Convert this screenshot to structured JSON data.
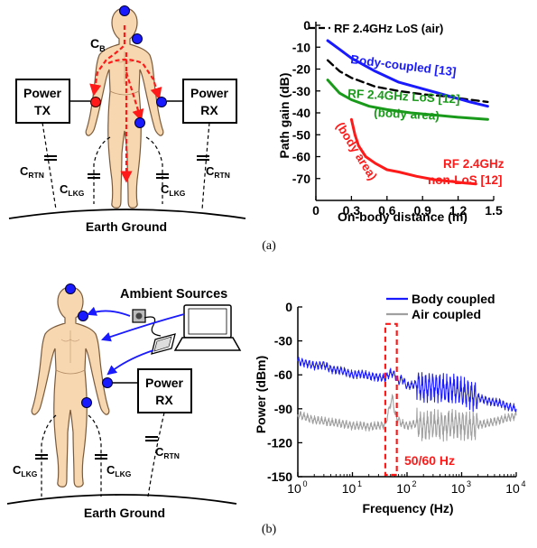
{
  "figure_a": {
    "caption": "(a)",
    "diagram": {
      "body_capacitance_label": "C",
      "body_capacitance_sub": "B",
      "power_tx_line1": "Power",
      "power_tx_line2": "TX",
      "power_rx_line1": "Power",
      "power_rx_line2": "RX",
      "c_rtn_left": "C",
      "c_rtn_left_sub": "RTN",
      "c_lkg_left": "C",
      "c_lkg_left_sub": "LKG",
      "c_lkg_right": "C",
      "c_lkg_right_sub": "LKG",
      "c_rtn_right": "C",
      "c_rtn_right_sub": "RTN",
      "ground_label": "Earth Ground"
    },
    "chart_data": {
      "type": "line",
      "xlabel": "On-body distance (m)",
      "ylabel": "Path gain (dB)",
      "xlim": [
        0,
        1.5
      ],
      "ylim": [
        -80,
        0
      ],
      "x_ticks": [
        "0",
        "0.3",
        "0.6",
        "0.9",
        "1.2",
        "1.5"
      ],
      "y_ticks": [
        "0",
        "-10",
        "-20",
        "-30",
        "-40",
        "-50",
        "-60",
        "-70"
      ],
      "legend": "RF 2.4GHz LoS (air)",
      "annotations": {
        "body_coupled": "Body-coupled [13]",
        "rf_los_body_1": "RF 2.4GHz LoS [12]",
        "rf_los_body_2": "(body area)",
        "rf_nlos_body": "(body area)",
        "rf_nlos_1": "RF 2.4GHz",
        "rf_nlos_2": "non-LoS [12]"
      },
      "series": [
        {
          "name": "RF 2.4GHz LoS (air)",
          "color": "#000000",
          "dash": true,
          "x": [
            0.1,
            0.2,
            0.3,
            0.5,
            0.7,
            0.9,
            1.1,
            1.3,
            1.45
          ],
          "y": [
            -16,
            -21,
            -24,
            -28,
            -30,
            -31.5,
            -32.5,
            -34,
            -35
          ]
        },
        {
          "name": "Body-coupled [13]",
          "color": "#1a1aff",
          "dash": false,
          "x": [
            0.1,
            0.2,
            0.3,
            0.5,
            0.7,
            0.9,
            1.1,
            1.3,
            1.45
          ],
          "y": [
            -7,
            -11,
            -15,
            -21,
            -26,
            -29,
            -32,
            -35,
            -37
          ]
        },
        {
          "name": "RF 2.4GHz LoS [12] (body area)",
          "color": "#1a9a1a",
          "dash": false,
          "x": [
            0.1,
            0.2,
            0.3,
            0.45,
            0.6,
            0.8,
            1.0,
            1.2,
            1.45
          ],
          "y": [
            -25,
            -31,
            -34,
            -37,
            -38.5,
            -40,
            -41,
            -42,
            -43
          ]
        },
        {
          "name": "RF 2.4GHz non-LoS [12] (body area)",
          "color": "#ff1a1a",
          "dash": false,
          "x": [
            0.3,
            0.33,
            0.36,
            0.42,
            0.5,
            0.6,
            0.7,
            0.85,
            1.0,
            1.25,
            1.35
          ],
          "y": [
            -43,
            -50,
            -55,
            -60,
            -63,
            -66,
            -67,
            -69,
            -70.5,
            -72,
            -72.5
          ]
        }
      ]
    }
  },
  "figure_b": {
    "caption": "(b)",
    "diagram": {
      "ambient_label": "Ambient Sources",
      "power_rx_line1": "Power",
      "power_rx_line2": "RX",
      "c_lkg_left": "C",
      "c_lkg_left_sub": "LKG",
      "c_lkg_right": "C",
      "c_lkg_right_sub": "LKG",
      "c_rtn": "C",
      "c_rtn_sub": "RTN",
      "ground_label": "Earth Ground"
    },
    "chart_data": {
      "type": "line",
      "xlabel": "Frequency (Hz)",
      "ylabel": "Power (dBm)",
      "xscale": "log",
      "xlim": [
        1,
        10000
      ],
      "ylim": [
        -150,
        0
      ],
      "y_ticks": [
        "0",
        "-30",
        "-60",
        "-90",
        "-120",
        "-150"
      ],
      "x_ticks_base": "10",
      "x_ticks_exp": [
        "0",
        "1",
        "2",
        "3",
        "4"
      ],
      "highlight_label": "50/60 Hz",
      "highlight_range": [
        40,
        65
      ],
      "series": [
        {
          "name": "Body coupled",
          "color": "#1a1aff",
          "x": [
            1,
            1.5,
            2,
            3,
            4,
            6,
            8,
            10,
            15,
            20,
            30,
            40,
            50,
            60,
            70,
            80,
            100,
            150,
            200,
            300,
            500,
            700,
            1000,
            1500,
            2000,
            3000,
            5000,
            7000,
            10000
          ],
          "y": [
            -48,
            -50,
            -52,
            -51,
            -55,
            -56,
            -58,
            -60,
            -59,
            -61,
            -62,
            -63,
            -58,
            -60,
            -66,
            -63,
            -70,
            -68,
            -72,
            -70,
            -73,
            -72,
            -75,
            -78,
            -80,
            -83,
            -85,
            -88,
            -90
          ]
        },
        {
          "name": "Air coupled",
          "color": "#a0a0a0",
          "x": [
            1,
            1.5,
            2,
            3,
            4,
            6,
            8,
            10,
            15,
            20,
            30,
            40,
            50,
            55,
            60,
            70,
            80,
            100,
            150,
            200,
            300,
            500,
            700,
            1000,
            1500,
            2000,
            3000,
            5000,
            7000,
            10000
          ],
          "y": [
            -95,
            -98,
            -100,
            -101,
            -102,
            -103,
            -104,
            -105,
            -105,
            -106,
            -105,
            -104,
            -85,
            -80,
            -95,
            -100,
            -103,
            -105,
            -103,
            -106,
            -104,
            -105,
            -103,
            -104,
            -106,
            -104,
            -103,
            -100,
            -98,
            -96
          ]
        }
      ]
    }
  }
}
